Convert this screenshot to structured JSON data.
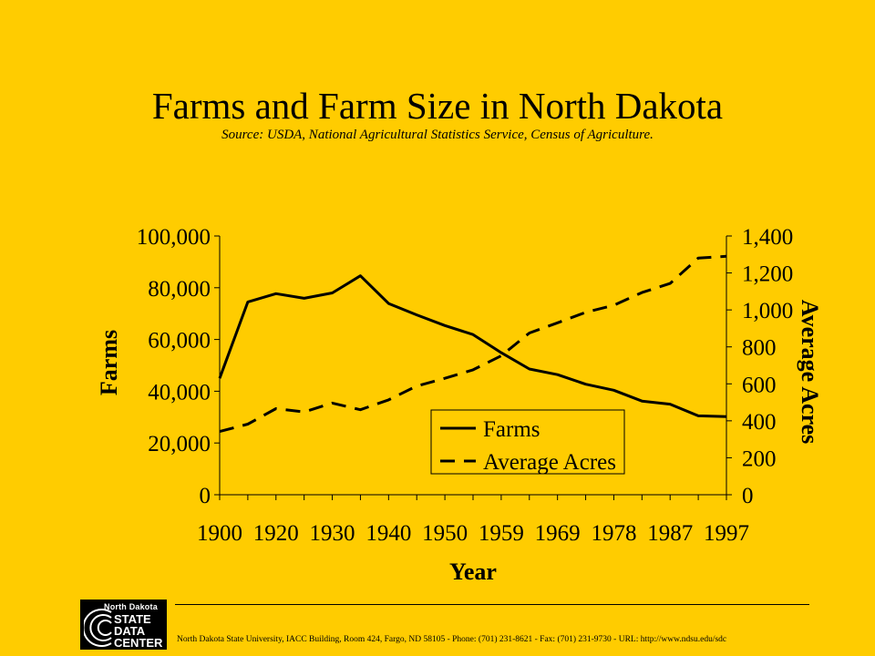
{
  "title": "Farms and Farm Size in North Dakota",
  "subtitle": "Source: USDA, National Agricultural Statistics Service, Census of Agriculture.",
  "colors": {
    "background": "#FFCC00",
    "ink": "#000000"
  },
  "chart_data": {
    "type": "line",
    "xlabel": "Year",
    "x_tick_labels": [
      "1900",
      "1920",
      "1930",
      "1940",
      "1950",
      "1959",
      "1969",
      "1978",
      "1987",
      "1997"
    ],
    "x_index": [
      0,
      1,
      2,
      3,
      4,
      5,
      6,
      7,
      8,
      9,
      10,
      11,
      12,
      13,
      14,
      15,
      16,
      17,
      18
    ],
    "y_left": {
      "label": "Farms",
      "lim": [
        0,
        100000
      ],
      "ticks": [
        "0",
        "20,000",
        "40,000",
        "60,000",
        "80,000",
        "100,000"
      ]
    },
    "y_right": {
      "label": "Average Acres",
      "lim": [
        0,
        1400
      ],
      "ticks": [
        "0",
        "200",
        "400",
        "600",
        "800",
        "1,000",
        "1,200",
        "1,400"
      ]
    },
    "series": [
      {
        "name": "Farms",
        "axis": "left",
        "style": "solid",
        "values": [
          45000,
          74500,
          77700,
          75900,
          78000,
          84600,
          73900,
          69500,
          65400,
          61900,
          54900,
          48600,
          46400,
          42700,
          40400,
          36200,
          35000,
          30500,
          30200
        ]
      },
      {
        "name": "Average Acres",
        "axis": "right",
        "style": "dashed",
        "values": [
          342,
          382,
          466,
          448,
          496,
          460,
          513,
          588,
          630,
          676,
          752,
          875,
          930,
          987,
          1025,
          1094,
          1143,
          1280,
          1290
        ]
      }
    ],
    "legend": {
      "placement": "bottom-center"
    }
  },
  "footer": {
    "contact": "North Dakota State University, IACC Building, Room 424, Fargo, ND 58105  -  Phone: (701) 231-8621  -  Fax: (701) 231-9730  -  URL: http://www.ndsu.edu/sdc",
    "logo": {
      "top": "North Dakota",
      "lines": [
        "STATE",
        "DATA",
        "CENTER"
      ]
    }
  }
}
